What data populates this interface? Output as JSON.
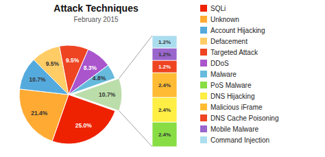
{
  "chart_data": [
    {
      "type": "pie",
      "title": "Attack Techniques",
      "subtitle": "February 2015",
      "categories": [
        "SQLi",
        "Unknown",
        "Account Hijacking",
        "Defacement",
        "Targeted Attack",
        "DDoS",
        "Malware",
        null
      ],
      "values": [
        25.0,
        21.4,
        10.7,
        9.5,
        9.5,
        8.3,
        4.8,
        10.7
      ],
      "value_labels": [
        "25.0%",
        "21.4%",
        "10.7%",
        "9.5%",
        "9.5%",
        "8.3%",
        "4.8%",
        "10.7%"
      ],
      "colors": [
        "#EE2200",
        "#FFAA33",
        "#55AADD",
        "#FFCC66",
        "#EE4422",
        "#AA55CC",
        "#66BBDD",
        "#BBDDAA"
      ],
      "data_labels": true,
      "legend": "right"
    },
    {
      "type": "bar",
      "stacked": true,
      "categories": [
        null
      ],
      "ylim": [
        0,
        10.8
      ],
      "tick_labels": false,
      "data_labels": true,
      "series": [
        {
          "name": "PoS Malware",
          "color": "#88DD44",
          "values": [
            2.4
          ],
          "value_labels": [
            "2.4%"
          ]
        },
        {
          "name": "DNS Hijacking",
          "color": "#FFEE44",
          "values": [
            2.4
          ],
          "value_labels": [
            "2.4%"
          ]
        },
        {
          "name": "Malicious iFrame",
          "color": "#FFBB33",
          "values": [
            2.4
          ],
          "value_labels": [
            "2.4%"
          ]
        },
        {
          "name": "DNS Cache Poisoning",
          "color": "#EE4422",
          "values": [
            1.2
          ],
          "value_labels": [
            "1.2%"
          ]
        },
        {
          "name": "Mobile Malware",
          "color": "#9966CC",
          "values": [
            1.2
          ],
          "value_labels": [
            "1.2%"
          ]
        },
        {
          "name": "Command Injection",
          "color": "#AADDEE",
          "values": [
            1.2
          ],
          "value_labels": [
            "1.2%"
          ]
        }
      ]
    }
  ]
}
